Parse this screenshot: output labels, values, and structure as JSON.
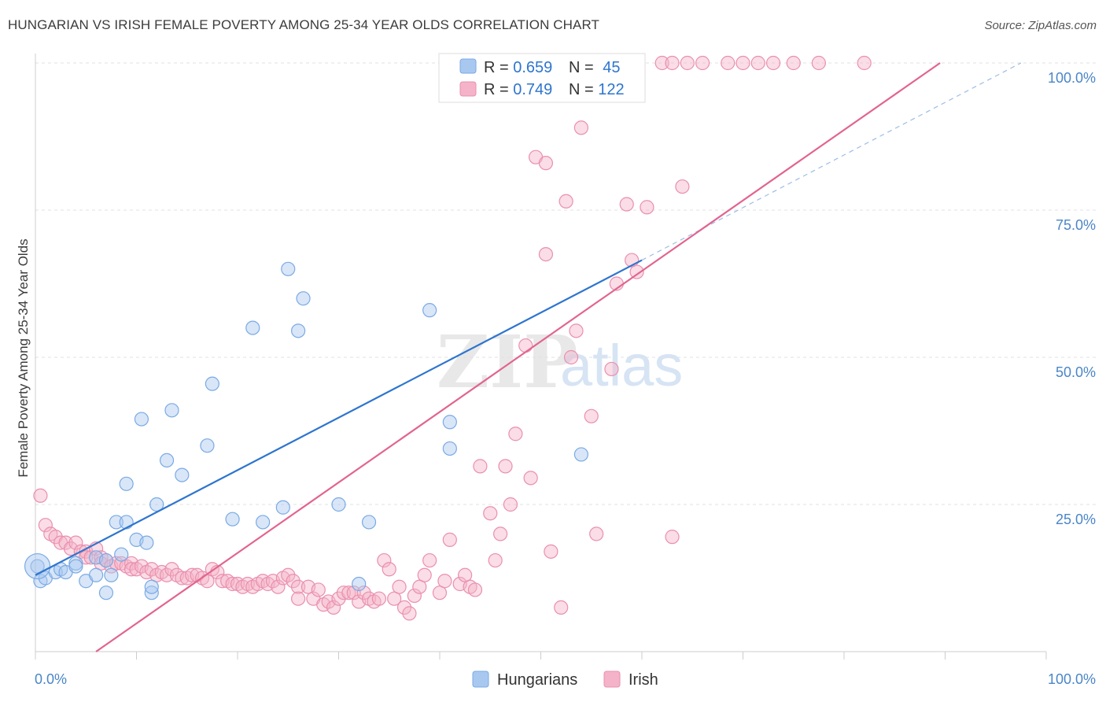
{
  "title": "HUNGARIAN VS IRISH FEMALE POVERTY AMONG 25-34 YEAR OLDS CORRELATION CHART",
  "source": "Source: ZipAtlas.com",
  "watermark": {
    "zip": "ZIP",
    "atlas": "atlas"
  },
  "colors": {
    "hungarians": "#a9c8f0",
    "hungarians_line": "#2e75cf",
    "irish": "#f4b3c8",
    "irish_line": "#e2648f",
    "tick": "#4a86c8",
    "grid": "#dddddd"
  },
  "legend_top": {
    "rows": [
      {
        "r_label": "R = ",
        "r_value": "0.659",
        "n_label": "N = ",
        "n_value": "45"
      },
      {
        "r_label": "R = ",
        "r_value": "0.749",
        "n_label": "N = ",
        "n_value": "122"
      }
    ]
  },
  "chart_data": {
    "type": "scatter",
    "title": "HUNGARIAN VS IRISH FEMALE POVERTY AMONG 25-34 YEAR OLDS CORRELATION CHART",
    "xlabel": "",
    "ylabel": "Female Poverty Among 25-34 Year Olds",
    "xlim": [
      0,
      100
    ],
    "ylim": [
      0,
      100
    ],
    "x_tick_labels": [
      "0.0%",
      "100.0%"
    ],
    "y_tick_labels": [
      "25.0%",
      "50.0%",
      "75.0%",
      "100.0%"
    ],
    "y_ticks": [
      25,
      50,
      75,
      100
    ],
    "grid": true,
    "legend_position": "top-center",
    "series": [
      {
        "name": "Hungarians",
        "color": "#a9c8f0",
        "r": 0.659,
        "n": 45,
        "trend": {
          "x0": 0,
          "y0": 13.0,
          "x1": 60,
          "y1": 66.5,
          "dashed_to": [
            97.5,
            100
          ]
        },
        "points": [
          [
            0.2,
            14.5
          ],
          [
            0.5,
            12
          ],
          [
            1,
            12.5
          ],
          [
            2,
            13.5
          ],
          [
            2.5,
            14
          ],
          [
            3,
            13.5
          ],
          [
            4,
            15
          ],
          [
            4,
            14.5
          ],
          [
            5,
            12
          ],
          [
            6,
            13
          ],
          [
            6,
            16
          ],
          [
            7,
            15.5
          ],
          [
            7,
            10
          ],
          [
            7.5,
            13
          ],
          [
            8,
            22
          ],
          [
            8.5,
            16.5
          ],
          [
            9,
            28.5
          ],
          [
            9,
            22
          ],
          [
            10,
            19
          ],
          [
            10.5,
            39.5
          ],
          [
            11,
            18.5
          ],
          [
            11.5,
            10
          ],
          [
            11.5,
            11
          ],
          [
            12,
            25
          ],
          [
            13,
            32.5
          ],
          [
            13.5,
            41
          ],
          [
            14.5,
            30
          ],
          [
            17,
            35
          ],
          [
            17.5,
            45.5
          ],
          [
            19.5,
            22.5
          ],
          [
            21.5,
            55
          ],
          [
            22.5,
            22
          ],
          [
            24.5,
            24.5
          ],
          [
            25,
            65
          ],
          [
            26,
            54.5
          ],
          [
            26.5,
            60
          ],
          [
            30,
            25
          ],
          [
            32,
            11.5
          ],
          [
            33,
            22
          ],
          [
            39,
            58
          ],
          [
            41,
            39
          ],
          [
            41,
            34.5
          ],
          [
            54,
            33.5
          ]
        ]
      },
      {
        "name": "Irish",
        "color": "#f4b3c8",
        "r": 0.749,
        "n": 122,
        "trend": {
          "x0": 6,
          "y0": 0,
          "x1": 89.5,
          "y1": 100
        },
        "points": [
          [
            0.5,
            26.5
          ],
          [
            1,
            21.5
          ],
          [
            1.5,
            20
          ],
          [
            2,
            19.5
          ],
          [
            2.5,
            18.5
          ],
          [
            3,
            18.5
          ],
          [
            3.5,
            17.5
          ],
          [
            4,
            18.5
          ],
          [
            4.5,
            17
          ],
          [
            5,
            17
          ],
          [
            5,
            16
          ],
          [
            5.5,
            16
          ],
          [
            6,
            17.5
          ],
          [
            6.5,
            16
          ],
          [
            6.5,
            15
          ],
          [
            7,
            15.5
          ],
          [
            7.5,
            14.5
          ],
          [
            8,
            15
          ],
          [
            8.5,
            15
          ],
          [
            9,
            14.5
          ],
          [
            9.5,
            15
          ],
          [
            9.5,
            14
          ],
          [
            10,
            14
          ],
          [
            10.5,
            14.5
          ],
          [
            11,
            13.5
          ],
          [
            11.5,
            14
          ],
          [
            12,
            13
          ],
          [
            12.5,
            13.5
          ],
          [
            13,
            13
          ],
          [
            13.5,
            14
          ],
          [
            14,
            13
          ],
          [
            14.5,
            12.5
          ],
          [
            15,
            12.5
          ],
          [
            15.5,
            13
          ],
          [
            16,
            13
          ],
          [
            16.5,
            12.5
          ],
          [
            17,
            12
          ],
          [
            17.5,
            14
          ],
          [
            18,
            13.5
          ],
          [
            18.5,
            12
          ],
          [
            19,
            12
          ],
          [
            19.5,
            11.5
          ],
          [
            20,
            11.5
          ],
          [
            20.5,
            11
          ],
          [
            21,
            11.5
          ],
          [
            21.5,
            11
          ],
          [
            22,
            11.5
          ],
          [
            22.5,
            12
          ],
          [
            23,
            11.5
          ],
          [
            23.5,
            12
          ],
          [
            24,
            11
          ],
          [
            24.5,
            12.5
          ],
          [
            25,
            13
          ],
          [
            25.5,
            12
          ],
          [
            26,
            11
          ],
          [
            26,
            9
          ],
          [
            27,
            11
          ],
          [
            27.5,
            9
          ],
          [
            28,
            10.5
          ],
          [
            28.5,
            8
          ],
          [
            29,
            8.5
          ],
          [
            29.5,
            7.5
          ],
          [
            30,
            9
          ],
          [
            30.5,
            10
          ],
          [
            31,
            10
          ],
          [
            31.5,
            10
          ],
          [
            32,
            8.5
          ],
          [
            32.5,
            10
          ],
          [
            33,
            9
          ],
          [
            33.5,
            8.5
          ],
          [
            34,
            9
          ],
          [
            34.5,
            15.5
          ],
          [
            35,
            14
          ],
          [
            35.5,
            9
          ],
          [
            36,
            11
          ],
          [
            36.5,
            7.5
          ],
          [
            37,
            6.5
          ],
          [
            37.5,
            9.5
          ],
          [
            38,
            11
          ],
          [
            38.5,
            13
          ],
          [
            39,
            15.5
          ],
          [
            40,
            10
          ],
          [
            40.5,
            12
          ],
          [
            41,
            19
          ],
          [
            42,
            11.5
          ],
          [
            42.5,
            13
          ],
          [
            43,
            11
          ],
          [
            43.5,
            10.5
          ],
          [
            44,
            31.5
          ],
          [
            45,
            23.5
          ],
          [
            45.5,
            15.5
          ],
          [
            46,
            20
          ],
          [
            46.5,
            31.5
          ],
          [
            47,
            25
          ],
          [
            47.5,
            37
          ],
          [
            48.5,
            52
          ],
          [
            49,
            29.5
          ],
          [
            49.5,
            84
          ],
          [
            50.5,
            83
          ],
          [
            50.5,
            67.5
          ],
          [
            51,
            17
          ],
          [
            52,
            7.5
          ],
          [
            52.5,
            76.5
          ],
          [
            53,
            50
          ],
          [
            53.5,
            54.5
          ],
          [
            54,
            89
          ],
          [
            55,
            40
          ],
          [
            55.5,
            20
          ],
          [
            57,
            48
          ],
          [
            57.5,
            62.5
          ],
          [
            58.5,
            76
          ],
          [
            59,
            66.5
          ],
          [
            59.5,
            64.5
          ],
          [
            60.5,
            75.5
          ],
          [
            63,
            19.5
          ],
          [
            64,
            79
          ],
          [
            62,
            100
          ],
          [
            63,
            100
          ],
          [
            64.5,
            100
          ],
          [
            66,
            100
          ],
          [
            68.5,
            100
          ],
          [
            70,
            100
          ],
          [
            71.5,
            100
          ],
          [
            73,
            100
          ],
          [
            75,
            100
          ],
          [
            77.5,
            100
          ],
          [
            82,
            100
          ]
        ]
      }
    ]
  },
  "bottom_legend": {
    "items": [
      "Hungarians",
      "Irish"
    ]
  }
}
